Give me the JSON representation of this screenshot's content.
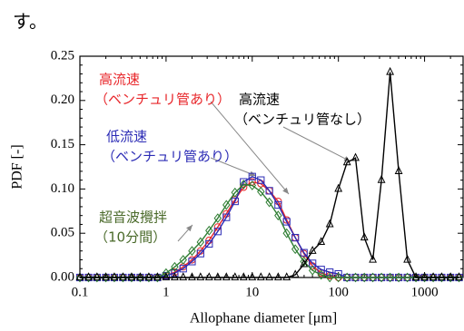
{
  "chart_data": {
    "type": "line",
    "header_text": "す。",
    "xlabel": "Allophane diameter [μm]",
    "ylabel": "PDF [-]",
    "xscale": "log",
    "xlim": [
      0.1,
      2800
    ],
    "ylim": [
      0,
      0.25
    ],
    "xticks": [
      0.1,
      1,
      10,
      100,
      1000
    ],
    "yticks": [
      {
        "value": 0,
        "label": "0.00"
      },
      {
        "value": 0.05,
        "label": "0.05"
      },
      {
        "value": 0.1,
        "label": "0.10"
      },
      {
        "value": 0.15,
        "label": "0.15"
      },
      {
        "value": 0.2,
        "label": "0.20"
      },
      {
        "value": 0.25,
        "label": "0.25"
      }
    ],
    "x": [
      0.1,
      0.126,
      0.158,
      0.2,
      0.251,
      0.316,
      0.398,
      0.501,
      0.631,
      0.794,
      1,
      1.26,
      1.58,
      2,
      2.51,
      3.16,
      3.98,
      5.01,
      6.31,
      7.94,
      10,
      12.6,
      15.8,
      20,
      25.1,
      31.6,
      39.8,
      50.1,
      63.1,
      79.4,
      100,
      126,
      158,
      200,
      251,
      316,
      398,
      501,
      631,
      794,
      1000,
      1260,
      1580,
      2000,
      2510
    ],
    "series": [
      {
        "color": "#e8262a",
        "marker": "circle",
        "values": [
          0,
          0,
          0,
          0,
          0,
          0,
          0,
          0,
          0,
          0,
          0.002,
          0.006,
          0.012,
          0.02,
          0.03,
          0.042,
          0.057,
          0.072,
          0.088,
          0.102,
          0.108,
          0.106,
          0.098,
          0.086,
          0.065,
          0.045,
          0.027,
          0.013,
          0.005,
          0.002,
          0,
          0,
          0,
          0,
          0,
          0,
          0,
          0,
          0,
          0,
          0,
          0,
          0,
          0,
          0
        ]
      },
      {
        "color": "#2b2bb5",
        "marker": "square",
        "values": [
          0,
          0,
          0,
          0,
          0,
          0,
          0,
          0,
          0,
          0,
          0.002,
          0.005,
          0.01,
          0.018,
          0.027,
          0.038,
          0.052,
          0.068,
          0.086,
          0.108,
          0.114,
          0.11,
          0.098,
          0.082,
          0.063,
          0.045,
          0.028,
          0.016,
          0.009,
          0.006,
          0.004,
          0,
          0,
          0,
          0,
          0,
          0,
          0,
          0,
          0,
          0,
          0,
          0,
          0,
          0
        ]
      },
      {
        "color": "#2e7d32",
        "marker": "diamond",
        "values": [
          0,
          0,
          0,
          0,
          0,
          0,
          0,
          0,
          0,
          0,
          0.005,
          0.012,
          0.02,
          0.03,
          0.04,
          0.053,
          0.067,
          0.082,
          0.096,
          0.105,
          0.104,
          0.097,
          0.085,
          0.07,
          0.05,
          0.032,
          0.018,
          0.008,
          0.003,
          0,
          0,
          0,
          0,
          0,
          0,
          0,
          0,
          0,
          0,
          0,
          0,
          0,
          0,
          0,
          0
        ]
      },
      {
        "color": "#000000",
        "marker": "triangle",
        "values": [
          0,
          0,
          0,
          0,
          0,
          0,
          0,
          0,
          0,
          0,
          0,
          0,
          0,
          0,
          0,
          0,
          0,
          0,
          0,
          0,
          0,
          0,
          0,
          0,
          0,
          0.003,
          0.015,
          0.03,
          0.04,
          0.06,
          0.1,
          0.13,
          0.135,
          0.045,
          0.02,
          0.11,
          0.232,
          0.12,
          0.02,
          0,
          0,
          0,
          0,
          0,
          0
        ]
      }
    ],
    "annotations": [
      {
        "lines": [
          "高流速",
          "（ベンチュリ管あり）"
        ],
        "color": "#e8262a"
      },
      {
        "lines": [
          "低流速",
          "（ベンチュリ管あり）"
        ],
        "color": "#2b2bb5"
      },
      {
        "lines": [
          "超音波攪拌",
          "（10分間）"
        ],
        "color": "#4a6a2a"
      },
      {
        "lines": [
          "高流速",
          "（ベンチュリ管なし）"
        ],
        "color": "#000000"
      }
    ]
  }
}
